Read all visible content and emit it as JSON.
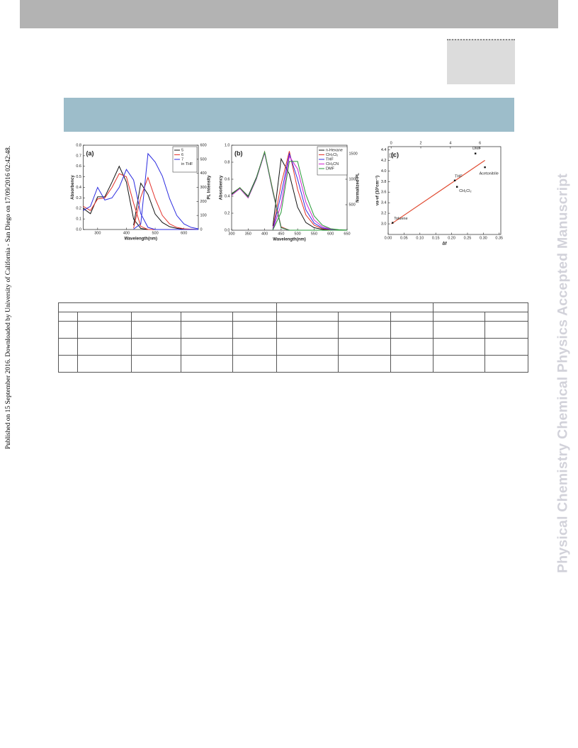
{
  "page": {
    "publication_note": "Published on 15 September 2016. Downloaded by University of California - San Diego on 17/09/2016 02:42:48.",
    "watermark": "Physical Chemistry Chemical Physics Accepted Manuscript"
  },
  "chart_data": [
    {
      "type": "line",
      "panel_label": "(a)",
      "xlabel": "Wavelength(nm)",
      "ylabel": "Absorbency",
      "y2label": "PL Intensity",
      "x": [
        250,
        275,
        300,
        325,
        350,
        375,
        400,
        425,
        450,
        475,
        500,
        525,
        550,
        575,
        600,
        625,
        650
      ],
      "xlim": [
        250,
        650
      ],
      "xticks": [
        300,
        400,
        500,
        600
      ],
      "ylim": [
        0,
        0.8
      ],
      "yticks": [
        {
          "value": 0,
          "label": "0.0"
        },
        {
          "value": 0.1,
          "label": "0.1"
        },
        {
          "value": 0.2,
          "label": "0.2"
        },
        {
          "value": 0.3,
          "label": "0.3"
        },
        {
          "value": 0.4,
          "label": "0.4"
        },
        {
          "value": 0.5,
          "label": "0.5"
        },
        {
          "value": 0.6,
          "label": "0.6"
        },
        {
          "value": 0.7,
          "label": "0.7"
        },
        {
          "value": 0.8,
          "label": "0.8"
        }
      ],
      "y2lim": [
        0,
        600
      ],
      "y2ticks": [
        0,
        100,
        200,
        300,
        400,
        500,
        600
      ],
      "legend_note": "in THF",
      "series": [
        {
          "name": "5",
          "color": "#111111",
          "values": [
            0.2,
            0.15,
            0.31,
            0.31,
            0.45,
            0.6,
            0.45,
            0.1,
            0.01,
            0,
            0,
            0,
            0,
            0,
            0,
            0,
            0
          ],
          "pl_values": [
            null,
            null,
            null,
            null,
            null,
            null,
            null,
            30,
            330,
            250,
            110,
            50,
            20,
            8,
            3,
            1,
            0
          ]
        },
        {
          "name": "6",
          "color": "#e3302a",
          "values": [
            0.22,
            0.18,
            0.29,
            0.3,
            0.4,
            0.53,
            0.5,
            0.25,
            0.03,
            0,
            0,
            0,
            0,
            0,
            0,
            0,
            0
          ],
          "pl_values": [
            null,
            null,
            null,
            null,
            null,
            null,
            null,
            10,
            230,
            370,
            220,
            100,
            40,
            15,
            5,
            2,
            0
          ]
        },
        {
          "name": "7",
          "color": "#2b2be0",
          "values": [
            0.18,
            0.22,
            0.4,
            0.28,
            0.3,
            0.4,
            0.57,
            0.47,
            0.15,
            0.02,
            0,
            0,
            0,
            0,
            0,
            0,
            0
          ],
          "pl_values": [
            null,
            null,
            null,
            null,
            null,
            null,
            null,
            3,
            40,
            540,
            480,
            380,
            220,
            100,
            40,
            15,
            5
          ]
        }
      ]
    },
    {
      "type": "line",
      "panel_label": "(b)",
      "xlabel": "Wavelength(nm)",
      "ylabel": "Absorbency",
      "y2label": "Normalized PL",
      "x": [
        300,
        325,
        350,
        375,
        400,
        425,
        450,
        475,
        500,
        525,
        550,
        575,
        600,
        625,
        650
      ],
      "xlim": [
        300,
        650
      ],
      "xticks": [
        300,
        350,
        400,
        450,
        500,
        550,
        600,
        650
      ],
      "ylim": [
        0,
        1.0
      ],
      "yticks": [
        {
          "value": 0,
          "label": "0.0"
        },
        {
          "value": 0.2,
          "label": "0.2"
        },
        {
          "value": 0.4,
          "label": "0.4"
        },
        {
          "value": 0.6,
          "label": "0.6"
        },
        {
          "value": 0.8,
          "label": "0.8"
        },
        {
          "value": 1.0,
          "label": "1.0"
        }
      ],
      "y2lim": [
        0,
        1667
      ],
      "y2ticks": [
        500,
        1000,
        1500
      ],
      "series": [
        {
          "name": "n-Hexane",
          "color": "#111111",
          "values": [
            0.43,
            0.5,
            0.4,
            0.62,
            0.92,
            0.45,
            0.03,
            0,
            0,
            0,
            0,
            0,
            0,
            0,
            0
          ],
          "pl_values": [
            null,
            null,
            null,
            null,
            null,
            80,
            1400,
            1100,
            450,
            150,
            50,
            15,
            5,
            0,
            0
          ]
        },
        {
          "name": "CH₂Cl₂",
          "color": "#e3302a",
          "values": [
            0.42,
            0.5,
            0.39,
            0.61,
            0.92,
            0.47,
            0.04,
            0,
            0,
            0,
            0,
            0,
            0,
            0,
            0
          ],
          "pl_values": [
            null,
            null,
            null,
            null,
            null,
            30,
            900,
            1550,
            800,
            300,
            100,
            30,
            10,
            3,
            0
          ]
        },
        {
          "name": "THF",
          "color": "#2b2be0",
          "values": [
            0.42,
            0.49,
            0.39,
            0.61,
            0.91,
            0.46,
            0.03,
            0,
            0,
            0,
            0,
            0,
            0,
            0,
            0
          ],
          "pl_values": [
            null,
            null,
            null,
            null,
            null,
            20,
            700,
            1500,
            1000,
            400,
            140,
            45,
            15,
            5,
            0
          ]
        },
        {
          "name": "CH₃CN",
          "color": "#d020d0",
          "values": [
            0.41,
            0.49,
            0.38,
            0.6,
            0.91,
            0.45,
            0.03,
            0,
            0,
            0,
            0,
            0,
            0,
            0,
            0
          ],
          "pl_values": [
            null,
            null,
            null,
            null,
            null,
            10,
            500,
            1450,
            1200,
            550,
            200,
            70,
            20,
            7,
            2
          ]
        },
        {
          "name": "DMF",
          "color": "#2a9a3a",
          "values": [
            0.42,
            0.5,
            0.39,
            0.61,
            0.92,
            0.46,
            0.03,
            0,
            0,
            0,
            0,
            0,
            0,
            0,
            0
          ],
          "pl_values": [
            null,
            null,
            null,
            null,
            null,
            5,
            350,
            1350,
            1350,
            700,
            280,
            100,
            30,
            10,
            3
          ]
        }
      ]
    },
    {
      "type": "scatter",
      "panel_label": "(c)",
      "xlabel": "Δf",
      "ylabel": "νa-νf (10³cm⁻¹)",
      "xlim": [
        0,
        0.355
      ],
      "xticks": [
        {
          "value": 0,
          "label": "0.00"
        },
        {
          "value": 0.05,
          "label": "0.05"
        },
        {
          "value": 0.1,
          "label": "0.10"
        },
        {
          "value": 0.15,
          "label": "0.15"
        },
        {
          "value": 0.2,
          "label": "0.20"
        },
        {
          "value": 0.25,
          "label": "0.25"
        },
        {
          "value": 0.3,
          "label": "0.30"
        },
        {
          "value": 0.35,
          "label": "0.35"
        }
      ],
      "x2lim": [
        -0.2,
        7.4
      ],
      "x2ticks": [
        0,
        2,
        4,
        6
      ],
      "ylim": [
        2.8,
        4.46
      ],
      "yticks": [
        {
          "value": 3.0,
          "label": "3.0"
        },
        {
          "value": 3.2,
          "label": "3.2"
        },
        {
          "value": 3.4,
          "label": "3.4"
        },
        {
          "value": 3.6,
          "label": "3.6"
        },
        {
          "value": 3.8,
          "label": "3.8"
        },
        {
          "value": 4.0,
          "label": "4.0"
        },
        {
          "value": 4.2,
          "label": "4.2"
        },
        {
          "value": 4.4,
          "label": "4.4"
        }
      ],
      "color": "#111111",
      "fit_color": "#e04a30",
      "labels": [
        "Toluene",
        "THF",
        "CH₂Cl₂",
        "DMF",
        "Acetonitrile"
      ],
      "x": [
        0.014,
        0.21,
        0.217,
        0.275,
        0.305
      ],
      "values": [
        3.02,
        3.82,
        3.7,
        4.33,
        4.07
      ],
      "fit_x": [
        0.01,
        0.305
      ],
      "fit_y": [
        3.0,
        4.2
      ]
    }
  ]
}
